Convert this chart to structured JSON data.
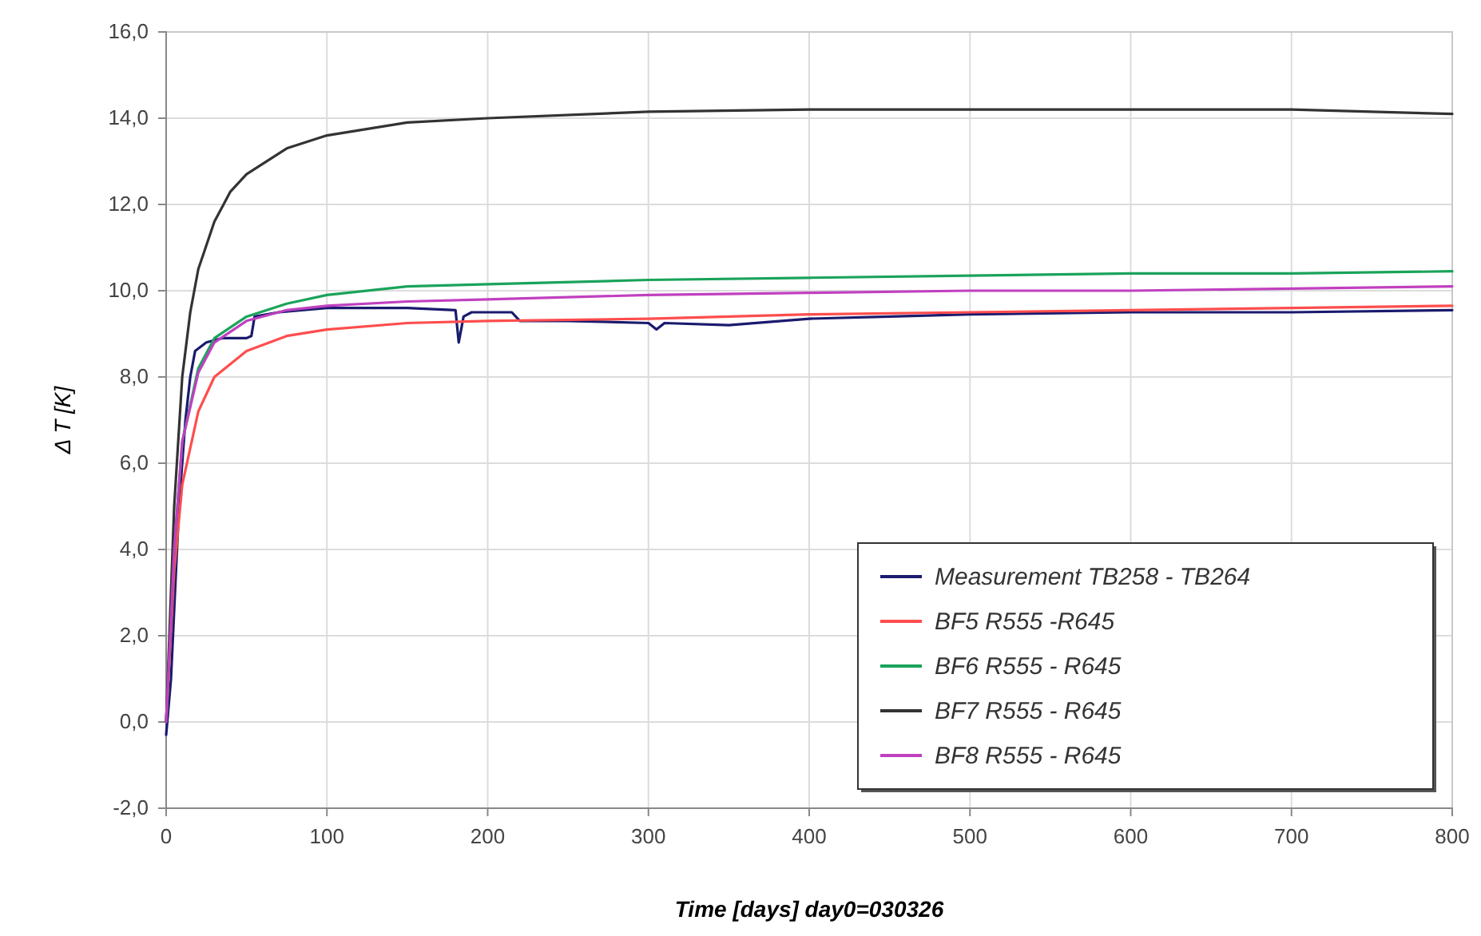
{
  "chart_data": {
    "type": "line",
    "xlabel": "Time [days]   day0=030326",
    "ylabel": "Δ T [K]",
    "xlim": [
      0,
      800
    ],
    "xticks": [
      0,
      100,
      200,
      300,
      400,
      500,
      600,
      700,
      800
    ],
    "ylim": [
      -2,
      16
    ],
    "yticks": [
      {
        "value": -2,
        "label": "-2,0"
      },
      {
        "value": 0,
        "label": "0,0"
      },
      {
        "value": 2,
        "label": "2,0"
      },
      {
        "value": 4,
        "label": "4,0"
      },
      {
        "value": 6,
        "label": "6,0"
      },
      {
        "value": 8,
        "label": "8,0"
      },
      {
        "value": 10,
        "label": "10,0"
      },
      {
        "value": 12,
        "label": "12,0"
      },
      {
        "value": 14,
        "label": "14,0"
      },
      {
        "value": 16,
        "label": "16,0"
      }
    ],
    "grid": true,
    "legend": "bottom right",
    "marker": "none",
    "line_style": "solid",
    "series": [
      {
        "name": "Measurement TB258 - TB264",
        "color": "#1a1a6e",
        "x": [
          0,
          3,
          8,
          12,
          15,
          18,
          25,
          35,
          50,
          53,
          55,
          70,
          100,
          150,
          180,
          182,
          185,
          190,
          215,
          220,
          250,
          300,
          305,
          310,
          350,
          400,
          450,
          500,
          600,
          700,
          800
        ],
        "values": [
          -0.3,
          1,
          5,
          7,
          8,
          8.6,
          8.8,
          8.9,
          8.9,
          8.95,
          9.4,
          9.5,
          9.6,
          9.6,
          9.55,
          8.8,
          9.4,
          9.5,
          9.5,
          9.3,
          9.3,
          9.25,
          9.1,
          9.25,
          9.2,
          9.35,
          9.4,
          9.45,
          9.5,
          9.5,
          9.55
        ]
      },
      {
        "name": "BF5 R555  -R645",
        "color": "#ff4d4d",
        "x": [
          0,
          5,
          10,
          20,
          30,
          50,
          75,
          100,
          150,
          200,
          300,
          400,
          500,
          600,
          700,
          800
        ],
        "values": [
          0,
          3.5,
          5.5,
          7.2,
          8.0,
          8.6,
          8.95,
          9.1,
          9.25,
          9.3,
          9.35,
          9.45,
          9.5,
          9.55,
          9.6,
          9.65
        ]
      },
      {
        "name": "BF6 R555 - R645",
        "color": "#1aa35a",
        "x": [
          0,
          5,
          10,
          20,
          30,
          50,
          75,
          100,
          150,
          200,
          300,
          400,
          500,
          600,
          700,
          800
        ],
        "values": [
          0,
          4,
          6.5,
          8.2,
          8.9,
          9.4,
          9.7,
          9.9,
          10.1,
          10.15,
          10.25,
          10.3,
          10.35,
          10.4,
          10.4,
          10.45
        ]
      },
      {
        "name": "BF7 R555 - R645",
        "color": "#333333",
        "x": [
          0,
          5,
          10,
          15,
          20,
          30,
          40,
          50,
          75,
          100,
          150,
          200,
          300,
          400,
          500,
          600,
          700,
          800
        ],
        "values": [
          0,
          5,
          8,
          9.5,
          10.5,
          11.6,
          12.3,
          12.7,
          13.3,
          13.6,
          13.9,
          14.0,
          14.15,
          14.2,
          14.2,
          14.2,
          14.2,
          14.1
        ]
      },
      {
        "name": "BF8 R555 - R645",
        "color": "#c040c0",
        "x": [
          0,
          5,
          10,
          20,
          30,
          50,
          75,
          100,
          150,
          200,
          300,
          400,
          500,
          600,
          700,
          800
        ],
        "values": [
          0,
          4,
          6.5,
          8.1,
          8.8,
          9.3,
          9.55,
          9.65,
          9.75,
          9.8,
          9.9,
          9.95,
          10.0,
          10.0,
          10.05,
          10.1
        ]
      }
    ]
  }
}
